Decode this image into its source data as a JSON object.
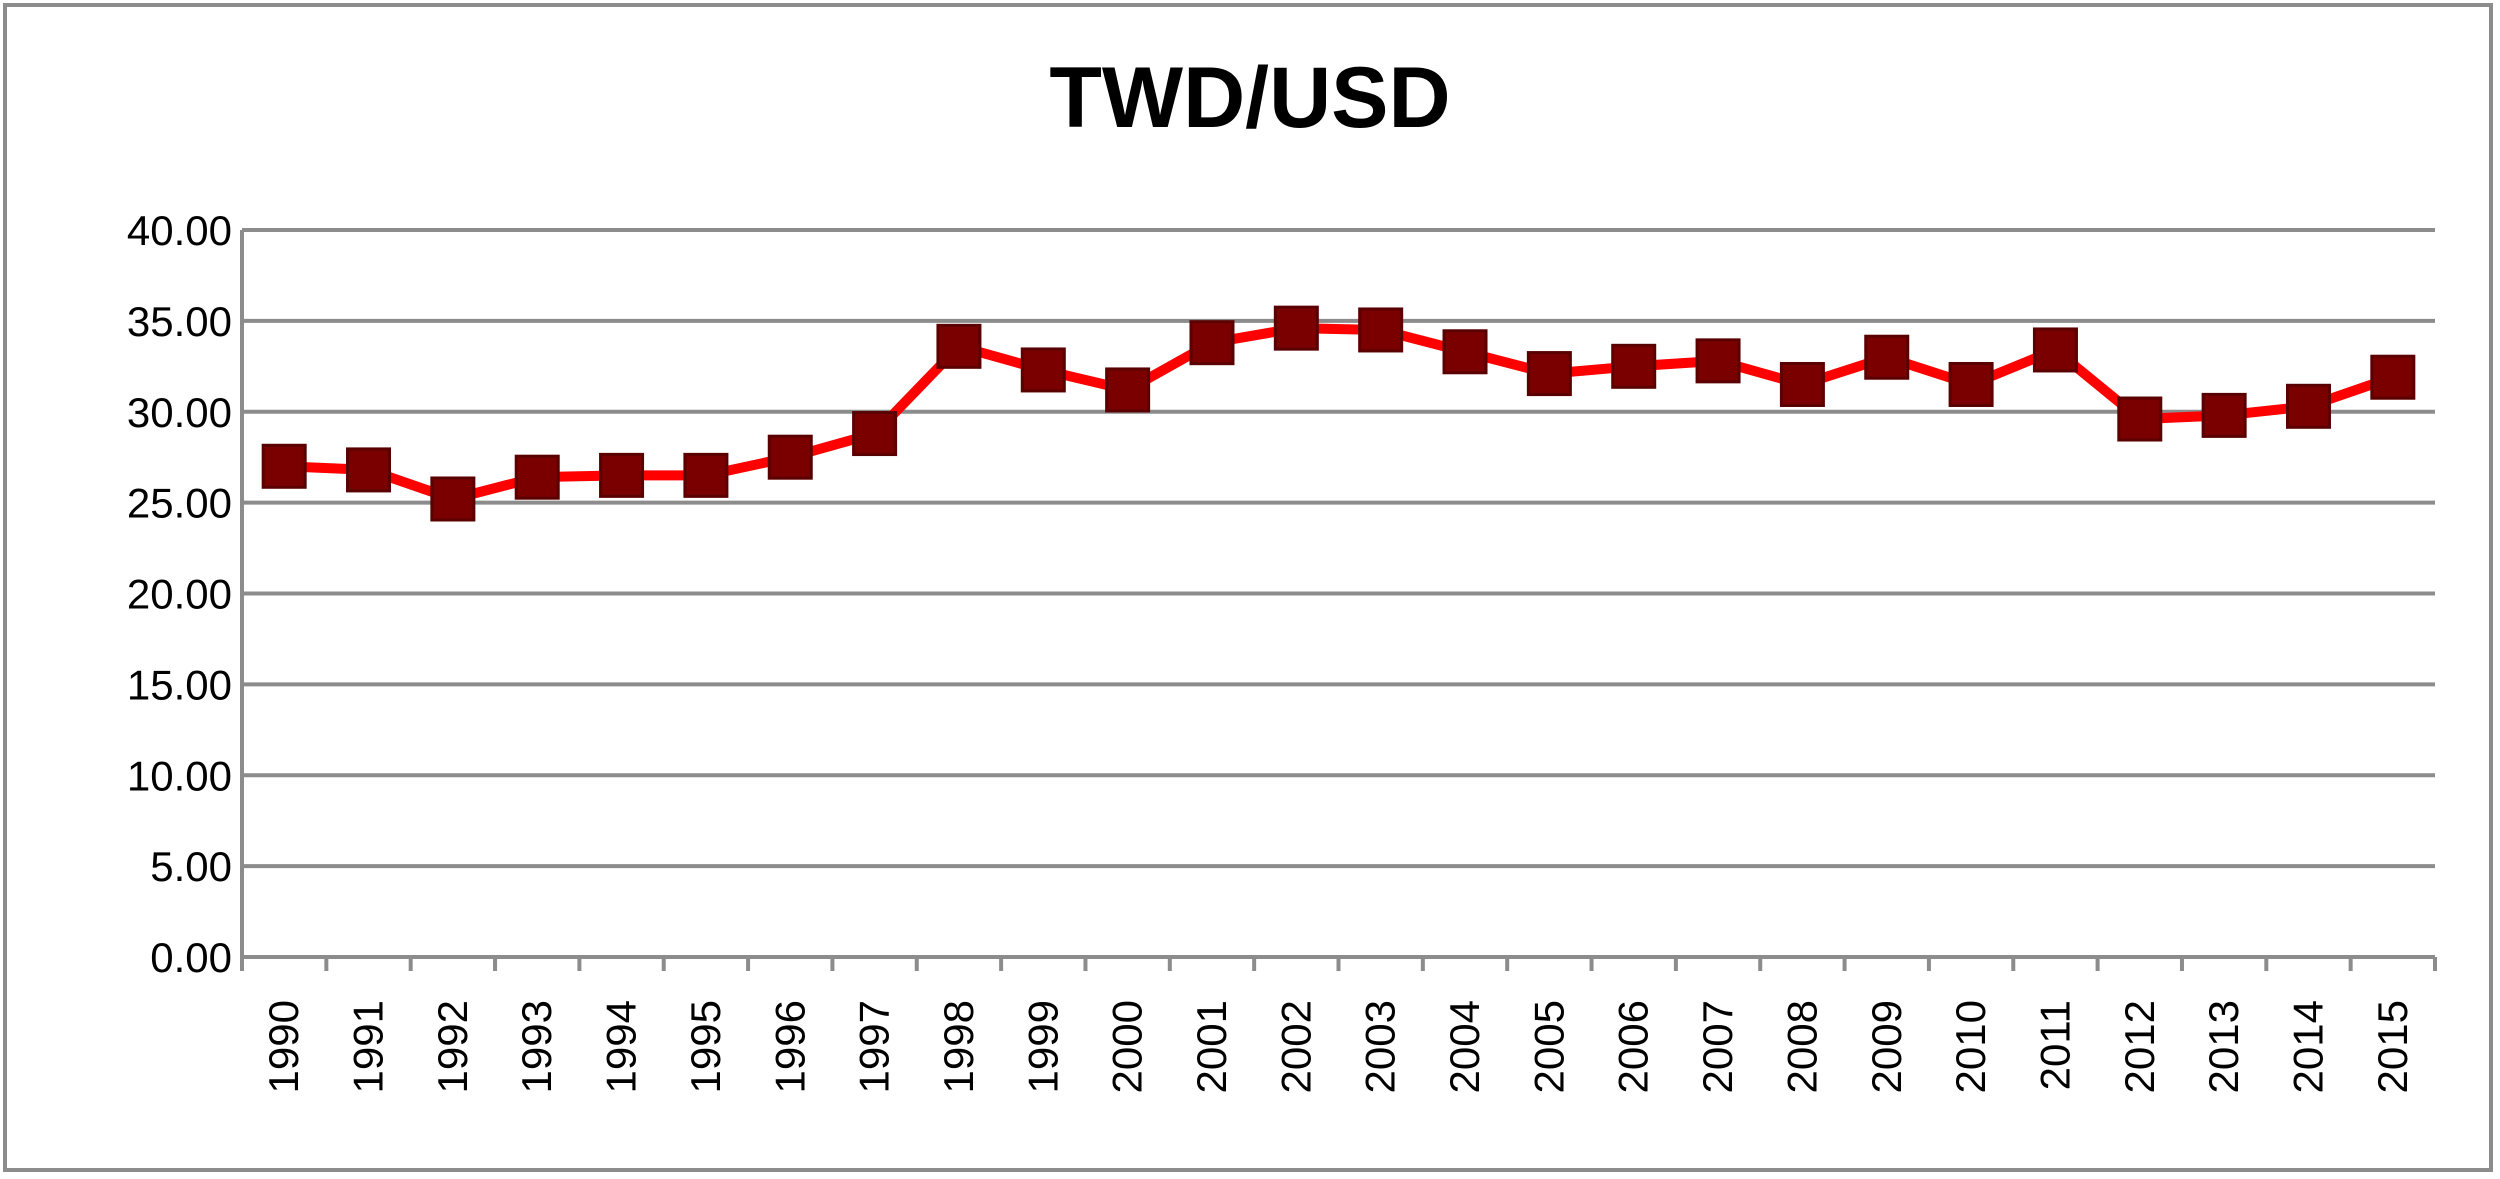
{
  "chart_data": {
    "type": "line",
    "title": "TWD/USD",
    "xlabel": "",
    "ylabel": "",
    "ylim": [
      0,
      40
    ],
    "y_ticks": [
      "0.00",
      "5.00",
      "10.00",
      "15.00",
      "20.00",
      "25.00",
      "30.00",
      "35.00",
      "40.00"
    ],
    "grid": true,
    "legend": "none",
    "categories": [
      "1990",
      "1991",
      "1992",
      "1993",
      "1994",
      "1995",
      "1996",
      "1997",
      "1998",
      "1999",
      "2000",
      "2001",
      "2002",
      "2003",
      "2004",
      "2005",
      "2006",
      "2007",
      "2008",
      "2009",
      "2010",
      "2011",
      "2012",
      "2013",
      "2014",
      "2015"
    ],
    "series": [
      {
        "values": [
          27.0,
          26.8,
          25.2,
          26.4,
          26.5,
          26.5,
          27.5,
          28.8,
          33.6,
          32.3,
          31.2,
          33.8,
          34.6,
          34.5,
          33.3,
          32.1,
          32.5,
          32.8,
          31.5,
          33.0,
          31.5,
          33.4,
          29.6,
          29.8,
          30.3,
          31.9
        ]
      }
    ],
    "colors": {
      "line": "#ff0000",
      "marker": "#7a0000",
      "grid": "#8c8c8c",
      "axis": "#8c8c8c"
    }
  }
}
